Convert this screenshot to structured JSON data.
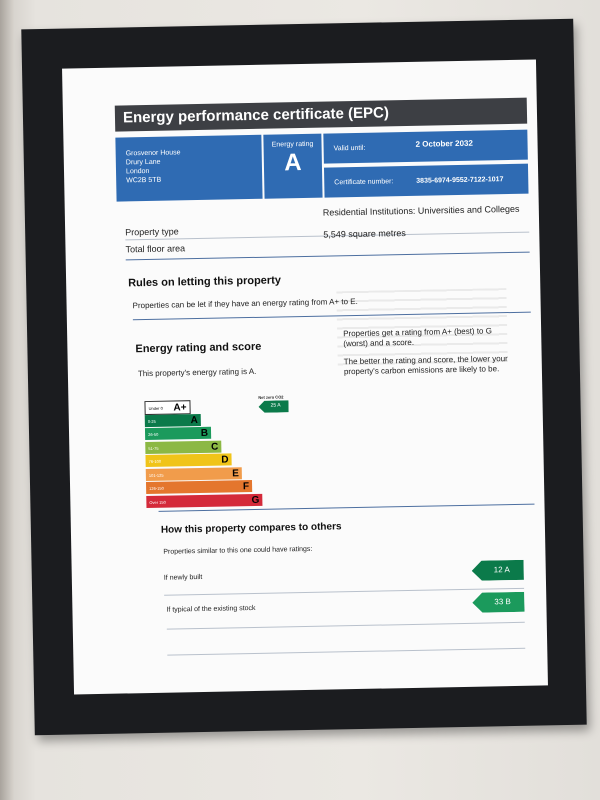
{
  "header": {
    "title": "Energy performance certificate (EPC)"
  },
  "address": {
    "line1": "Grosvenor House",
    "line2": "Drury Lane",
    "line3": "London",
    "line4": "WC2B 5TB"
  },
  "energy_rating_box": {
    "label": "Energy rating",
    "value": "A"
  },
  "validity": {
    "label": "Valid until:",
    "value": "2 October 2032"
  },
  "certificate": {
    "label": "Certificate number:",
    "value": "3835-6974-9552-7122-1017"
  },
  "property": {
    "type_label": "Property type",
    "type_value": "Residential Institutions: Universities and Colleges",
    "area_label": "Total floor area",
    "area_value": "5,549 square metres"
  },
  "rules": {
    "heading": "Rules on letting this property",
    "text": "Properties can be let if they have an energy rating from A+ to E."
  },
  "rating_section": {
    "heading": "Energy rating and score",
    "statement": "This property's energy rating is A.",
    "right_text_1a": "Properties get a rating from A+ (best) to G",
    "right_text_1b": "(worst) and a score.",
    "right_text_2a": "The better the rating and score, the lower your",
    "right_text_2b": "property's carbon emissions are likely to be.",
    "net_zero_label": "Net zero CO2",
    "current_marker": "25 A"
  },
  "scale": {
    "bands": [
      {
        "range": "Under 0",
        "letter": "A+",
        "color": "#ffffff"
      },
      {
        "range": "0-25",
        "letter": "A",
        "color": "#0b7a4a"
      },
      {
        "range": "26-50",
        "letter": "B",
        "color": "#1b9a5c"
      },
      {
        "range": "51-75",
        "letter": "C",
        "color": "#8cb844"
      },
      {
        "range": "76-100",
        "letter": "D",
        "color": "#f0c419"
      },
      {
        "range": "101-125",
        "letter": "E",
        "color": "#f19c4b"
      },
      {
        "range": "126-150",
        "letter": "F",
        "color": "#e4762d"
      },
      {
        "range": "Over 150",
        "letter": "G",
        "color": "#d42a3a"
      }
    ]
  },
  "compare": {
    "heading": "How this property compares to others",
    "intro": "Properties similar to this one could have ratings:",
    "rows": [
      {
        "label": "If newly built",
        "value": "12  A",
        "color": "#0b7a4a"
      },
      {
        "label": "If typical of the existing stock",
        "value": "33  B",
        "color": "#1b9a5c"
      }
    ]
  }
}
